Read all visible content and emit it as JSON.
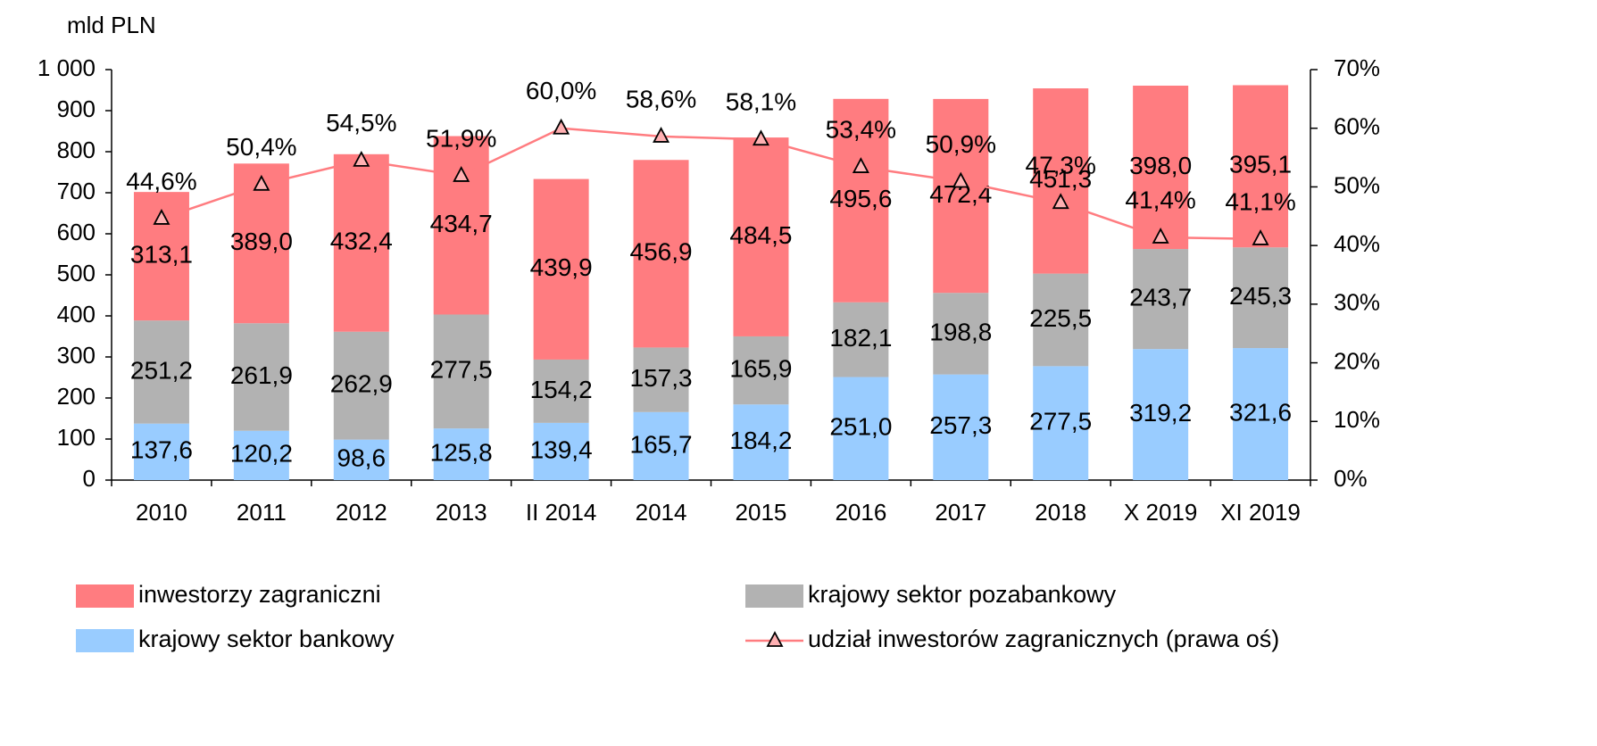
{
  "chart_data": {
    "type": "bar",
    "stacked": true,
    "y_label": "mld PLN",
    "categories": [
      "2010",
      "2011",
      "2012",
      "2013",
      "II 2014",
      "2014",
      "2015",
      "2016",
      "2017",
      "2018",
      "X 2019",
      "XI 2019"
    ],
    "series": [
      {
        "name": "krajowy sektor bankowy",
        "color": "#99ccff",
        "values": [
          137.6,
          120.2,
          98.6,
          125.8,
          139.4,
          165.7,
          184.2,
          251.0,
          257.3,
          277.5,
          319.2,
          321.6
        ],
        "value_labels": [
          "137,6",
          "120,2",
          "98,6",
          "125,8",
          "139,4",
          "165,7",
          "184,2",
          "251,0",
          "257,3",
          "277,5",
          "319,2",
          "321,6"
        ]
      },
      {
        "name": "krajowy sektor pozabankowy",
        "color": "#b2b2b2",
        "values": [
          251.2,
          261.9,
          262.9,
          277.5,
          154.2,
          157.3,
          165.9,
          182.1,
          198.8,
          225.5,
          243.7,
          245.3
        ],
        "value_labels": [
          "251,2",
          "261,9",
          "262,9",
          "277,5",
          "154,2",
          "157,3",
          "165,9",
          "182,1",
          "198,8",
          "225,5",
          "243,7",
          "245,3"
        ]
      },
      {
        "name": "inwestorzy zagraniczni",
        "color": "#ff7c80",
        "values": [
          313.1,
          389.0,
          432.4,
          434.7,
          439.9,
          456.9,
          484.5,
          495.6,
          472.4,
          451.3,
          398.0,
          395.1
        ],
        "value_labels": [
          "313,1",
          "389,0",
          "432,4",
          "434,7",
          "439,9",
          "456,9",
          "484,5",
          "495,6",
          "472,4",
          "451,3",
          "398,0",
          "395,1"
        ]
      },
      {
        "name": "udział inwestorów zagranicznych (prawa oś)",
        "type": "line",
        "axis": "y2",
        "color": "#ff7c80",
        "marker": "triangle",
        "values": [
          44.6,
          50.4,
          54.5,
          51.9,
          60.0,
          58.6,
          58.1,
          53.4,
          50.9,
          47.3,
          41.4,
          41.1
        ],
        "value_labels": [
          "44,6%",
          "50,4%",
          "54,5%",
          "51,9%",
          "60,0%",
          "58,6%",
          "58,1%",
          "53,4%",
          "50,9%",
          "47,3%",
          "41,4%",
          "41,1%"
        ]
      }
    ],
    "ylim": [
      0,
      1000
    ],
    "yticks": [
      0,
      100,
      200,
      300,
      400,
      500,
      600,
      700,
      800,
      900,
      {
        "value": 1000,
        "label": "1 000"
      }
    ],
    "y2lim": [
      0,
      70
    ],
    "y2ticks": [
      {
        "value": 0,
        "label": "0%"
      },
      {
        "value": 10,
        "label": "10%"
      },
      {
        "value": 20,
        "label": "20%"
      },
      {
        "value": 30,
        "label": "30%"
      },
      {
        "value": 40,
        "label": "40%"
      },
      {
        "value": 50,
        "label": "50%"
      },
      {
        "value": 60,
        "label": "60%"
      },
      {
        "value": 70,
        "label": "70%"
      }
    ],
    "grid": false,
    "legend": "bottom"
  }
}
